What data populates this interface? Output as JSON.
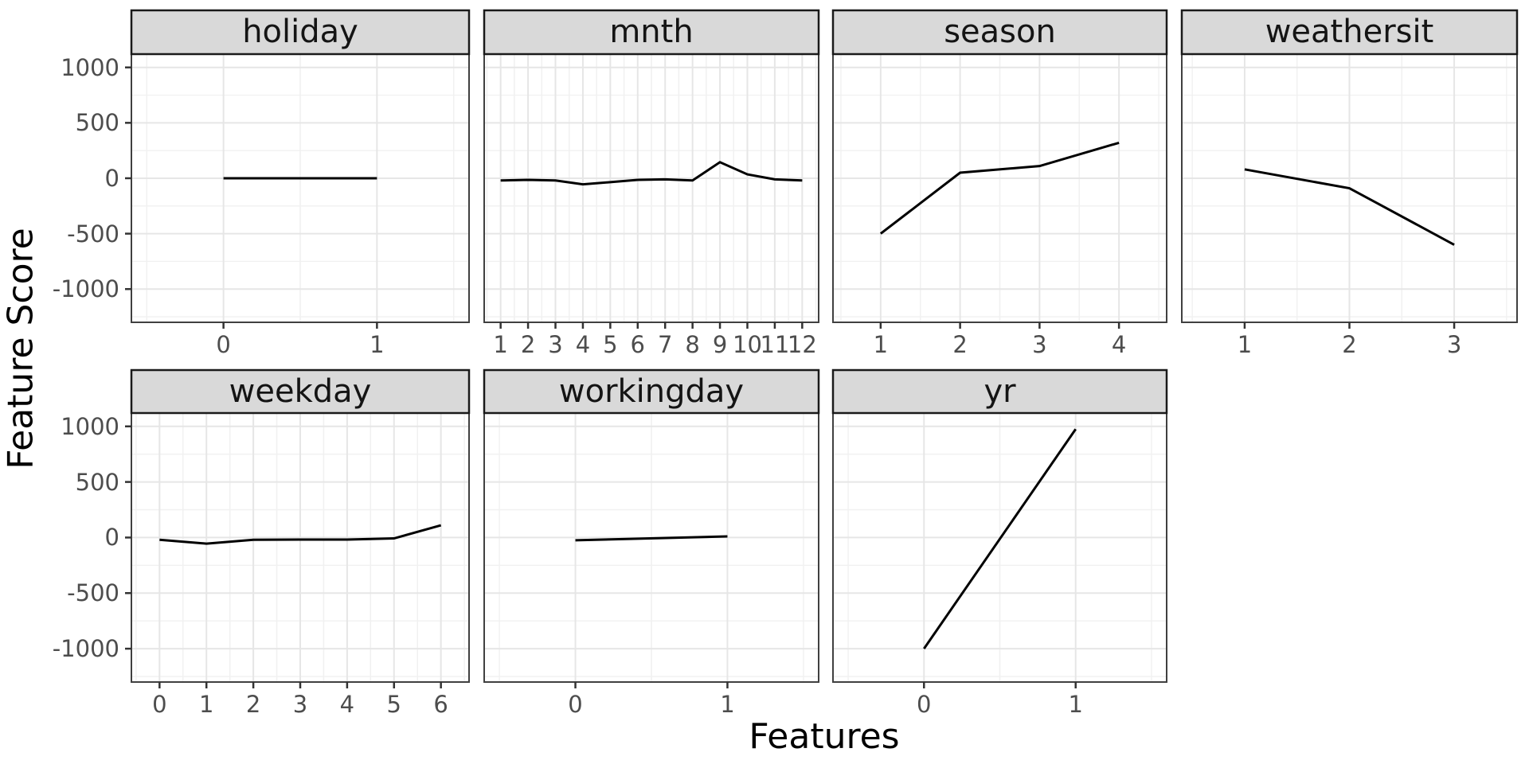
{
  "figure": {
    "y_axis_title": "Feature Score",
    "x_axis_title": "Features"
  },
  "colors": {
    "strip_fill": "#d9d9d9",
    "strip_border": "#1a1a1a",
    "panel_border": "#404040",
    "panel_fill": "#ffffff",
    "grid_major": "#e6e6e6",
    "grid_minor": "#f1f1f1",
    "line": "#000000",
    "tick_mark": "#333333",
    "tick_text": "#4d4d4d"
  },
  "chart_data": {
    "type": "line",
    "title": "",
    "xlabel": "Features",
    "ylabel": "Feature Score",
    "ylim": [
      -1300,
      1120
    ],
    "y_major_ticks": [
      1000,
      500,
      0,
      -500,
      -1000
    ],
    "y_minor_ticks": [
      -1250,
      -750,
      -250,
      250,
      750
    ],
    "grid": "on",
    "legend": "none",
    "facet_layout": "wrap-2-rows",
    "panels": [
      {
        "facet": "holiday",
        "x": [
          0,
          1
        ],
        "y": [
          0,
          0
        ]
      },
      {
        "facet": "mnth",
        "x": [
          1,
          2,
          3,
          4,
          5,
          6,
          7,
          8,
          9,
          10,
          11,
          12
        ],
        "y": [
          -20,
          -15,
          -20,
          -55,
          -35,
          -15,
          -10,
          -20,
          145,
          35,
          -10,
          -20
        ]
      },
      {
        "facet": "season",
        "x": [
          1,
          2,
          3,
          4
        ],
        "y": [
          -500,
          50,
          110,
          320
        ]
      },
      {
        "facet": "weathersit",
        "x": [
          1,
          2,
          3
        ],
        "y": [
          80,
          -90,
          -600
        ]
      },
      {
        "facet": "weekday",
        "x": [
          0,
          1,
          2,
          3,
          4,
          5,
          6
        ],
        "y": [
          -20,
          -55,
          -20,
          -18,
          -18,
          -8,
          110
        ]
      },
      {
        "facet": "workingday",
        "x": [
          0,
          1
        ],
        "y": [
          -25,
          10
        ]
      },
      {
        "facet": "yr",
        "x": [
          0,
          1
        ],
        "y": [
          -1000,
          975
        ]
      }
    ]
  }
}
